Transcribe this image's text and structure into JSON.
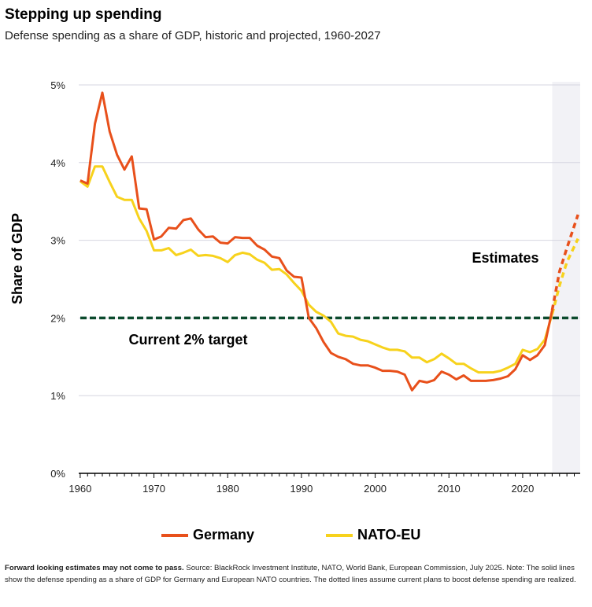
{
  "title": "Stepping up spending",
  "subtitle": "Defense spending as a share of GDP, historic and projected, 1960-2027",
  "footnote": {
    "bold": "Forward looking estimates may not come to pass.",
    "text": " Source: BlackRock Investment Institute, NATO, World Bank, European Commission, July 2025. Note: The solid lines show the defense spending as a share of GDP for Germany and European NATO countries. The dotted lines assume current plans to boost defense spending are realized."
  },
  "chart_data": {
    "type": "line",
    "ylabel": "Share of GDP",
    "xlim": [
      1959.8,
      2027.8
    ],
    "ylim": [
      0,
      5
    ],
    "x_ticks": [
      1960,
      1970,
      1980,
      1990,
      2000,
      2010,
      2020
    ],
    "y_ticks": [
      {
        "value": 0,
        "label": "0%"
      },
      {
        "value": 1,
        "label": "1%"
      },
      {
        "value": 2,
        "label": "2%"
      },
      {
        "value": 3,
        "label": "3%"
      },
      {
        "value": 4,
        "label": "4%"
      },
      {
        "value": 5,
        "label": "5%"
      }
    ],
    "grid": "horizontal",
    "colors": {
      "Germany": "#e8501b",
      "NATO-EU": "#f7d21c",
      "target": "#0b4a2c",
      "shade": "#f2f2f6"
    },
    "shaded_region": {
      "from": 2024,
      "to": 2027.8,
      "label": "Estimates"
    },
    "reference_line": {
      "y": 2.0,
      "label": "Current 2% target"
    },
    "series": [
      {
        "name": "Germany",
        "solid": {
          "x": [
            1960,
            1961,
            1962,
            1963,
            1964,
            1965,
            1966,
            1967,
            1968,
            1969,
            1970,
            1971,
            1972,
            1973,
            1974,
            1975,
            1976,
            1977,
            1978,
            1979,
            1980,
            1981,
            1982,
            1983,
            1984,
            1985,
            1986,
            1987,
            1988,
            1989,
            1990,
            1991,
            1992,
            1993,
            1994,
            1995,
            1996,
            1997,
            1998,
            1999,
            2000,
            2001,
            2002,
            2003,
            2004,
            2005,
            2006,
            2007,
            2008,
            2009,
            2010,
            2011,
            2012,
            2013,
            2014,
            2015,
            2016,
            2017,
            2018,
            2019,
            2020,
            2021,
            2022,
            2023,
            2024
          ],
          "y": [
            3.77,
            3.73,
            4.5,
            4.9,
            4.4,
            4.1,
            3.91,
            4.08,
            3.41,
            3.4,
            3.01,
            3.05,
            3.16,
            3.15,
            3.26,
            3.28,
            3.14,
            3.04,
            3.05,
            2.97,
            2.96,
            3.04,
            3.03,
            3.03,
            2.93,
            2.88,
            2.79,
            2.77,
            2.61,
            2.53,
            2.52,
            2.0,
            1.87,
            1.69,
            1.55,
            1.5,
            1.47,
            1.41,
            1.39,
            1.39,
            1.36,
            1.32,
            1.32,
            1.31,
            1.27,
            1.07,
            1.19,
            1.17,
            1.2,
            1.31,
            1.27,
            1.21,
            1.26,
            1.19,
            1.19,
            1.19,
            1.2,
            1.22,
            1.25,
            1.34,
            1.52,
            1.46,
            1.52,
            1.65,
            2.1
          ]
        },
        "projected": {
          "x": [
            2024,
            2025,
            2026,
            2027.5
          ],
          "y": [
            2.1,
            2.6,
            2.9,
            3.33
          ]
        }
      },
      {
        "name": "NATO-EU",
        "solid": {
          "x": [
            1960,
            1961,
            1962,
            1963,
            1964,
            1965,
            1966,
            1967,
            1968,
            1969,
            1970,
            1971,
            1972,
            1973,
            1974,
            1975,
            1976,
            1977,
            1978,
            1979,
            1980,
            1981,
            1982,
            1983,
            1984,
            1985,
            1986,
            1987,
            1988,
            1989,
            1990,
            1991,
            1992,
            1993,
            1994,
            1995,
            1996,
            1997,
            1998,
            1999,
            2000,
            2001,
            2002,
            2003,
            2004,
            2005,
            2006,
            2007,
            2008,
            2009,
            2010,
            2011,
            2012,
            2013,
            2014,
            2015,
            2016,
            2017,
            2018,
            2019,
            2020,
            2021,
            2022,
            2023,
            2024
          ],
          "y": [
            3.76,
            3.69,
            3.95,
            3.95,
            3.75,
            3.56,
            3.52,
            3.52,
            3.28,
            3.12,
            2.87,
            2.87,
            2.9,
            2.81,
            2.84,
            2.88,
            2.8,
            2.81,
            2.8,
            2.77,
            2.72,
            2.81,
            2.84,
            2.82,
            2.75,
            2.71,
            2.62,
            2.63,
            2.56,
            2.45,
            2.35,
            2.17,
            2.08,
            2.03,
            1.95,
            1.8,
            1.77,
            1.76,
            1.72,
            1.7,
            1.66,
            1.62,
            1.59,
            1.59,
            1.57,
            1.49,
            1.49,
            1.43,
            1.47,
            1.54,
            1.48,
            1.41,
            1.41,
            1.35,
            1.3,
            1.3,
            1.3,
            1.32,
            1.36,
            1.41,
            1.59,
            1.56,
            1.6,
            1.72,
            2.05
          ]
        },
        "projected": {
          "x": [
            2024,
            2025,
            2026,
            2027.5
          ],
          "y": [
            2.05,
            2.42,
            2.72,
            3.02
          ]
        }
      }
    ]
  }
}
